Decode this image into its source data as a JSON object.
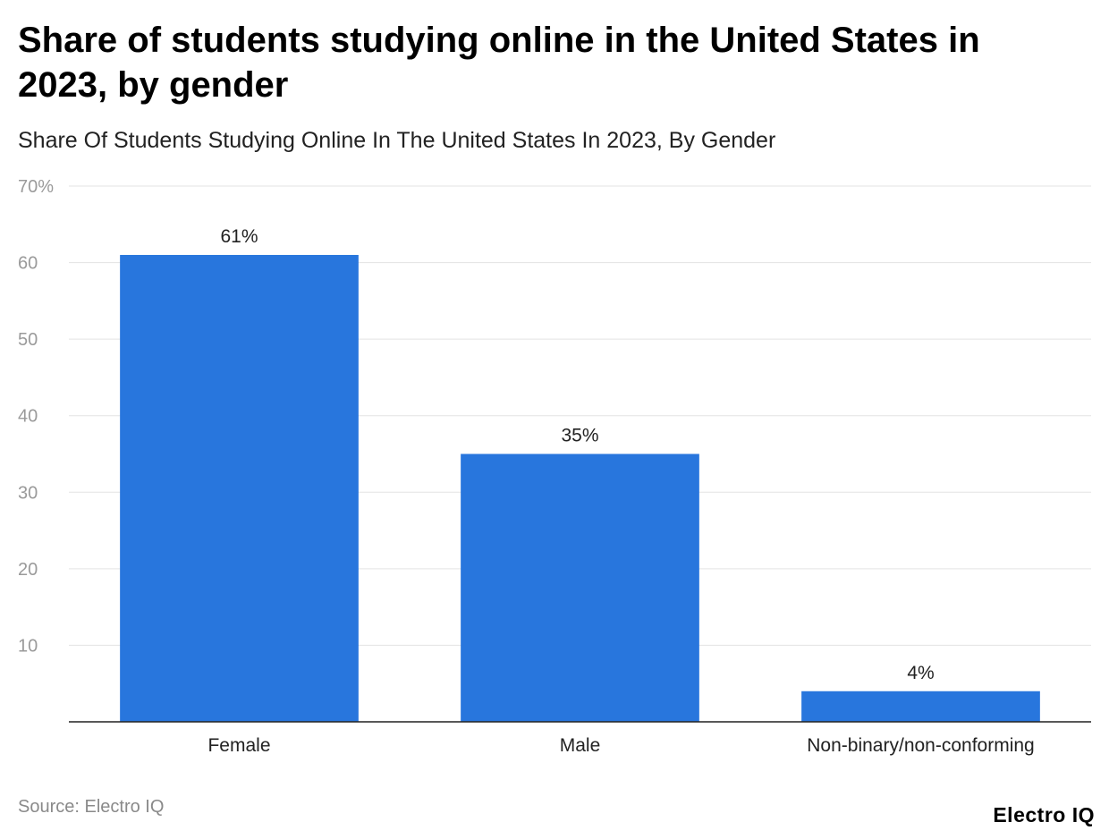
{
  "chart_data": {
    "type": "bar",
    "title": "Share of students studying online in the United States in 2023, by gender",
    "subtitle": "Share Of Students Studying Online In The United States In 2023, By Gender",
    "categories": [
      "Female",
      "Male",
      "Non-binary/non-conforming"
    ],
    "values": [
      61,
      35,
      4
    ],
    "data_labels": [
      "61%",
      "35%",
      "4%"
    ],
    "y_ticks": [
      "10",
      "20",
      "30",
      "40",
      "50",
      "60",
      "70%"
    ],
    "ylim": [
      0,
      70
    ],
    "grid": true,
    "bar_color": "#2876dd"
  },
  "footer": {
    "source": "Source: Electro IQ",
    "brand": "Electro IQ"
  }
}
